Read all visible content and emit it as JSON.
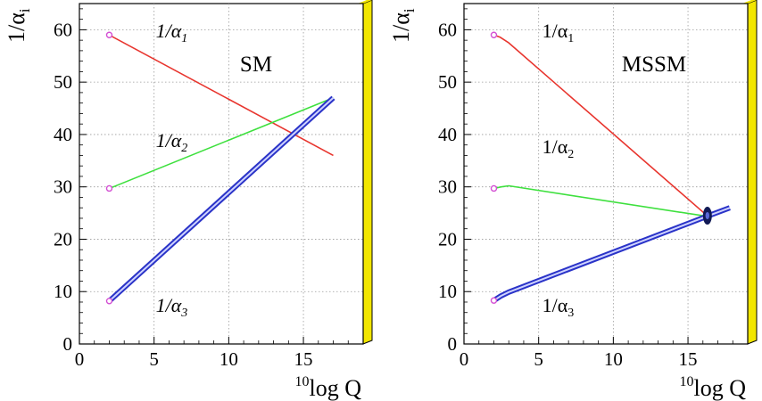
{
  "chart_data": [
    {
      "type": "line",
      "title": "",
      "annotation": "SM",
      "xlabel_sup": "10",
      "xlabel": "log Q",
      "ylabel": "1/α",
      "ylabel_sub": "i",
      "xlim": [
        0,
        19
      ],
      "ylim": [
        0,
        65
      ],
      "xticks": [
        0,
        5,
        10,
        15
      ],
      "yticks": [
        0,
        10,
        20,
        30,
        40,
        50,
        60
      ],
      "grid": true,
      "series": [
        {
          "name": "1/α",
          "sub": "1",
          "color": "#e8352e",
          "double": false,
          "points": [
            [
              2,
              59
            ],
            [
              17,
              36
            ]
          ]
        },
        {
          "name": "1/α",
          "sub": "2",
          "color": "#3ee03e",
          "double": false,
          "points": [
            [
              2,
              29.7
            ],
            [
              17,
              47
            ]
          ]
        },
        {
          "name": "1/α",
          "sub": "3",
          "color": "#2a33c8",
          "double": true,
          "points": [
            [
              2,
              8.2
            ],
            [
              17,
              47
            ]
          ]
        }
      ],
      "start_marker_color": "#d34fd3"
    },
    {
      "type": "line",
      "title": "",
      "annotation": "MSSM",
      "xlabel_sup": "10",
      "xlabel": "log Q",
      "ylabel": "1/α",
      "ylabel_sub": "i",
      "xlim": [
        0,
        19
      ],
      "ylim": [
        0,
        65
      ],
      "xticks": [
        0,
        5,
        10,
        15
      ],
      "yticks": [
        0,
        10,
        20,
        30,
        40,
        50,
        60
      ],
      "grid": true,
      "series": [
        {
          "name": "1/α",
          "sub": "1",
          "color": "#e8352e",
          "double": false,
          "points": [
            [
              2,
              59
            ],
            [
              2.4,
              58.6
            ],
            [
              3,
              57.5
            ],
            [
              16.2,
              24.7
            ]
          ]
        },
        {
          "name": "1/α",
          "sub": "2",
          "color": "#3ee03e",
          "double": false,
          "points": [
            [
              2,
              29.7
            ],
            [
              2.5,
              30
            ],
            [
              3,
              30.2
            ],
            [
              16.2,
              24.4
            ]
          ]
        },
        {
          "name": "1/α",
          "sub": "3",
          "color": "#2a33c8",
          "double": true,
          "points": [
            [
              2,
              8.3
            ],
            [
              2.5,
              9.2
            ],
            [
              3,
              9.9
            ],
            [
              16.2,
              24.3
            ],
            [
              17.8,
              26
            ]
          ]
        }
      ],
      "start_marker_color": "#d34fd3",
      "unification_point": {
        "x": 16.3,
        "y": 24.5,
        "color": "#111a55"
      }
    }
  ]
}
